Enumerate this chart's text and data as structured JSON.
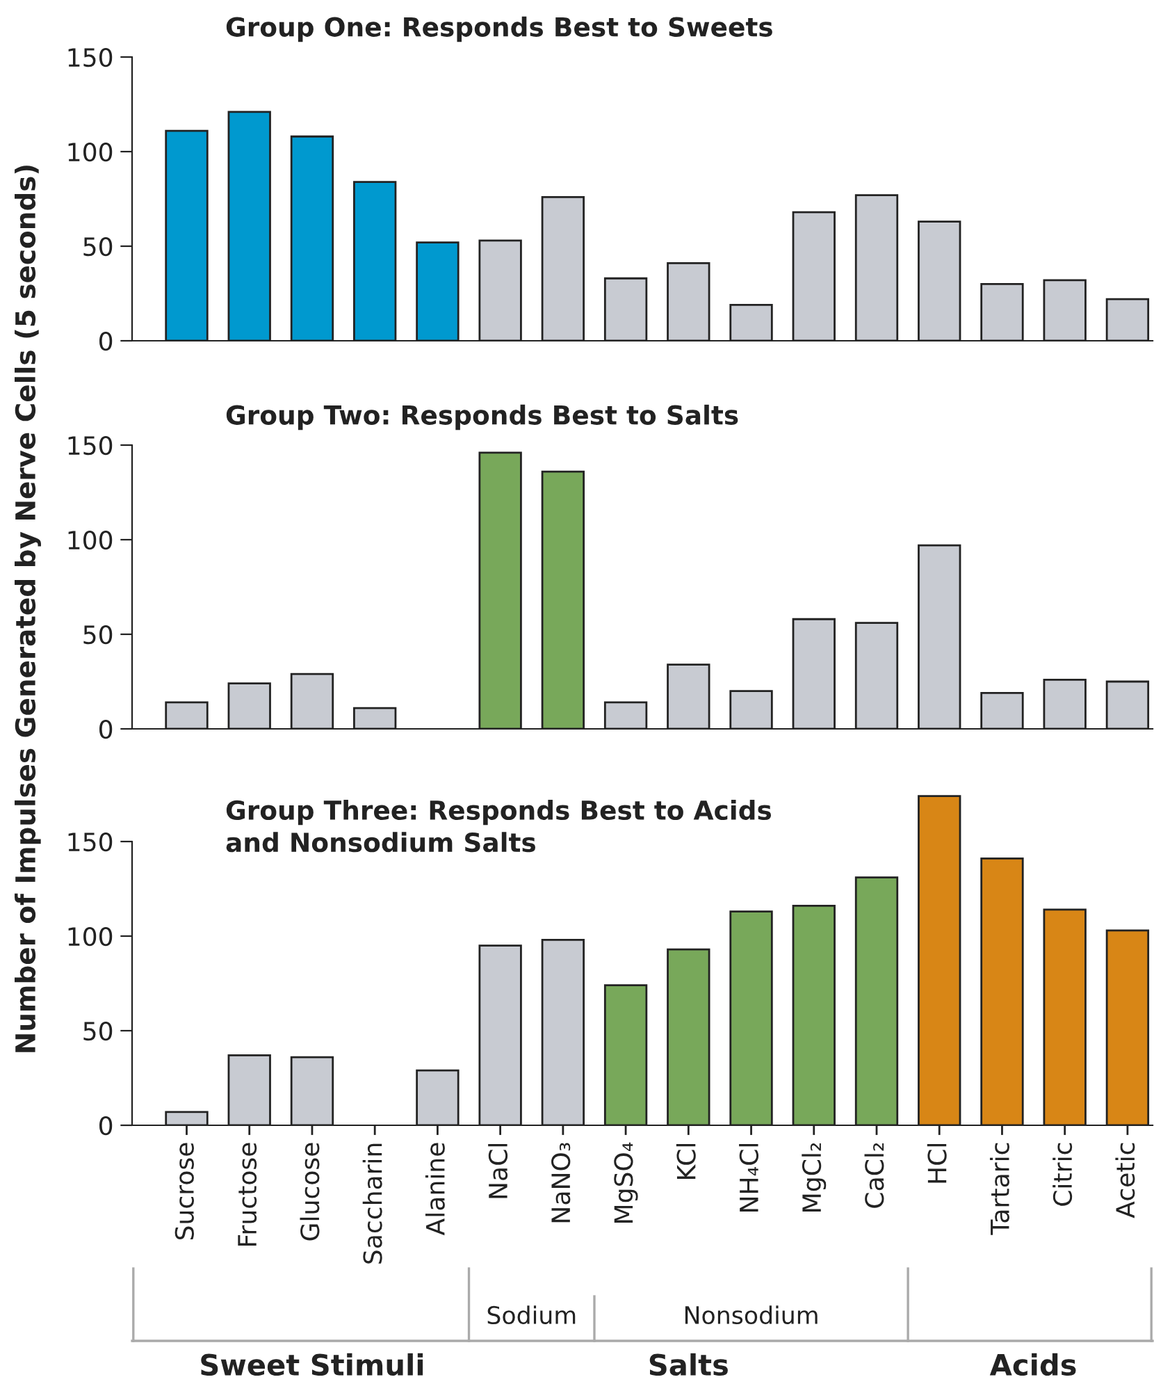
{
  "chart_data": [
    {
      "type": "bar",
      "title": "Group One: Responds Best to Sweets",
      "categories": [
        null,
        null,
        null,
        null,
        null,
        null,
        null,
        null,
        null,
        null,
        null,
        null,
        null,
        null,
        null,
        null
      ],
      "values": [
        111,
        121,
        108,
        84,
        52,
        53,
        76,
        33,
        41,
        19,
        68,
        77,
        63,
        30,
        32,
        22
      ],
      "colors": [
        "#0099cf",
        "#0099cf",
        "#0099cf",
        "#0099cf",
        "#0099cf",
        "#c8cbd2",
        "#c8cbd2",
        "#c8cbd2",
        "#c8cbd2",
        "#c8cbd2",
        "#c8cbd2",
        "#c8cbd2",
        "#c8cbd2",
        "#c8cbd2",
        "#c8cbd2",
        "#c8cbd2"
      ],
      "ylim": [
        0,
        150
      ],
      "yticks": [
        0,
        50,
        100,
        150
      ],
      "tick_labels": "y",
      "grid": false,
      "legend": false
    },
    {
      "type": "bar",
      "title": "Group Two: Responds Best to Salts",
      "ylabel": "Number of Impulses Generated by Nerve Cells (5 seconds)",
      "categories": [
        null,
        null,
        null,
        null,
        null,
        null,
        null,
        null,
        null,
        null,
        null,
        null,
        null,
        null,
        null,
        null
      ],
      "values": [
        14,
        24,
        29,
        11,
        null,
        146,
        136,
        14,
        34,
        20,
        58,
        56,
        97,
        19,
        26,
        25
      ],
      "colors": [
        "#c8cbd2",
        "#c8cbd2",
        "#c8cbd2",
        "#c8cbd2",
        "#c8cbd2",
        "#78a85a",
        "#78a85a",
        "#c8cbd2",
        "#c8cbd2",
        "#c8cbd2",
        "#c8cbd2",
        "#c8cbd2",
        "#c8cbd2",
        "#c8cbd2",
        "#c8cbd2",
        "#c8cbd2"
      ],
      "ylim": [
        0,
        150
      ],
      "yticks": [
        0,
        50,
        100,
        150
      ],
      "tick_labels": "y",
      "grid": false,
      "legend": false
    },
    {
      "type": "bar",
      "title": "Group Three: Responds Best to Acids\nand Nonsodium Salts",
      "categories": [
        "Sucrose",
        "Fructose",
        "Glucose",
        "Saccharin",
        "Alanine",
        "NaCl",
        "NaNO₃",
        "MgSO₄",
        "KCl",
        "NH₄Cl",
        "MgCl₂",
        "CaCl₂",
        "HCl",
        "Tartaric",
        "Citric",
        "Acetic"
      ],
      "values": [
        7,
        37,
        36,
        null,
        29,
        95,
        98,
        74,
        93,
        113,
        116,
        131,
        174,
        141,
        114,
        103
      ],
      "colors": [
        "#c8cbd2",
        "#c8cbd2",
        "#c8cbd2",
        "#c8cbd2",
        "#c8cbd2",
        "#c8cbd2",
        "#c8cbd2",
        "#78a85a",
        "#78a85a",
        "#78a85a",
        "#78a85a",
        "#78a85a",
        "#d88616",
        "#d88616",
        "#d88616",
        "#d88616"
      ],
      "ylim": [
        0,
        175
      ],
      "yticks": [
        0,
        50,
        100,
        150
      ],
      "grid": false,
      "legend": false,
      "annotations": [
        "Sweet Stimuli",
        "Salts",
        "Sodium",
        "Nonsodium",
        "Acids"
      ]
    }
  ]
}
